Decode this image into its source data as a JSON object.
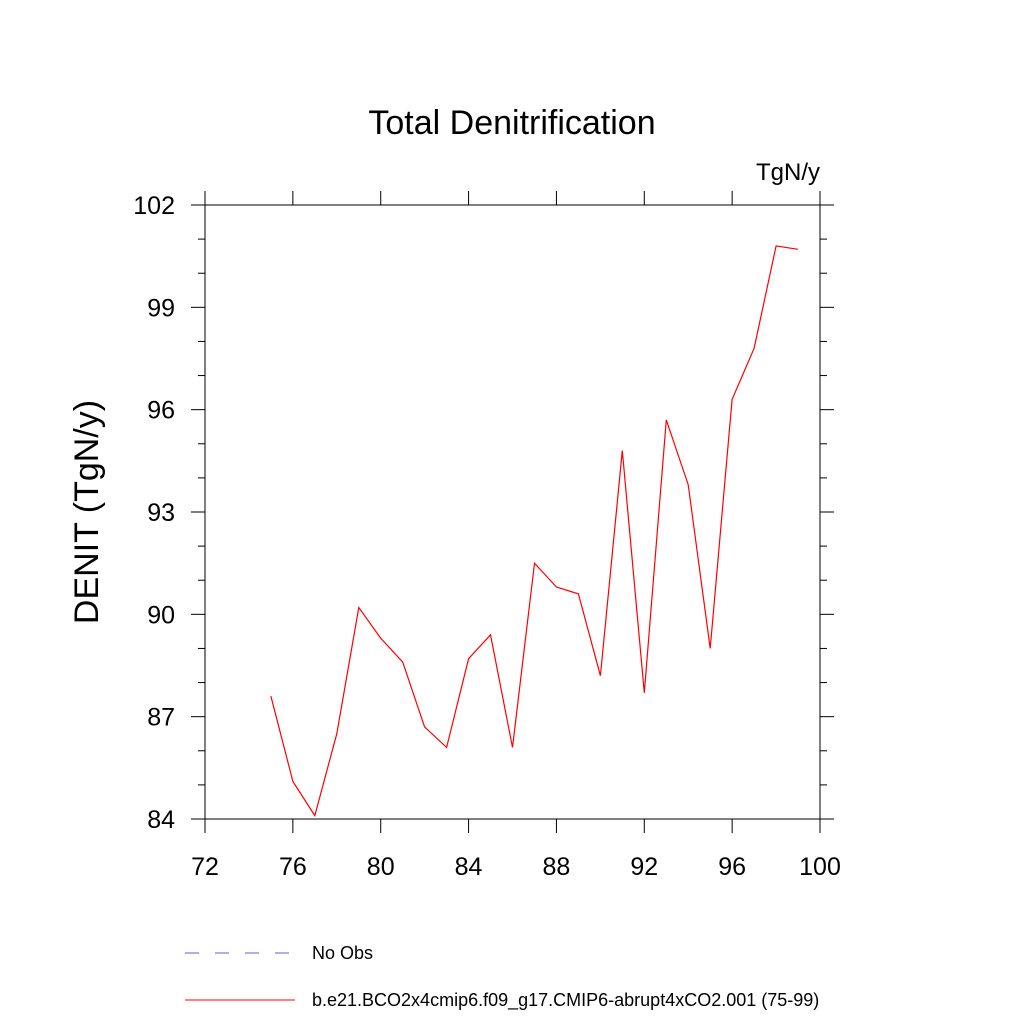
{
  "chart_data": {
    "type": "line",
    "title": "Total Denitrification",
    "units": "TgN/y",
    "xlabel": "",
    "ylabel": "DENIT  (TgN/y)",
    "xlim": [
      72,
      100
    ],
    "ylim": [
      84,
      102
    ],
    "x_ticks": [
      72,
      76,
      80,
      84,
      88,
      92,
      96,
      100
    ],
    "y_ticks": [
      84,
      87,
      90,
      93,
      96,
      99,
      102
    ],
    "y_minor_step": 1,
    "x_minor_step": 4,
    "series": [
      {
        "name": "b.e21.BCO2x4cmip6.f09_g17.CMIP6-abrupt4xCO2.001 (75-99)",
        "color": "#ff0000",
        "style": "solid",
        "x": [
          75,
          76,
          77,
          78,
          79,
          80,
          81,
          82,
          83,
          84,
          85,
          86,
          87,
          88,
          89,
          90,
          91,
          92,
          93,
          94,
          95,
          96,
          97,
          98,
          99
        ],
        "y": [
          87.6,
          85.1,
          84.1,
          86.5,
          90.2,
          89.3,
          88.6,
          86.7,
          86.1,
          88.7,
          89.4,
          86.1,
          91.5,
          90.8,
          90.6,
          88.2,
          94.8,
          87.7,
          95.7,
          93.8,
          89.0,
          96.3,
          97.8,
          100.8,
          100.7
        ]
      }
    ],
    "legend": {
      "placement": "bottom",
      "entries": [
        {
          "label": "No Obs",
          "color": "#6a5acd",
          "style": "dashed"
        },
        {
          "label": "b.e21.BCO2x4cmip6.f09_g17.CMIP6-abrupt4xCO2.001 (75-99)",
          "color": "#ff0000",
          "style": "solid"
        }
      ]
    }
  }
}
